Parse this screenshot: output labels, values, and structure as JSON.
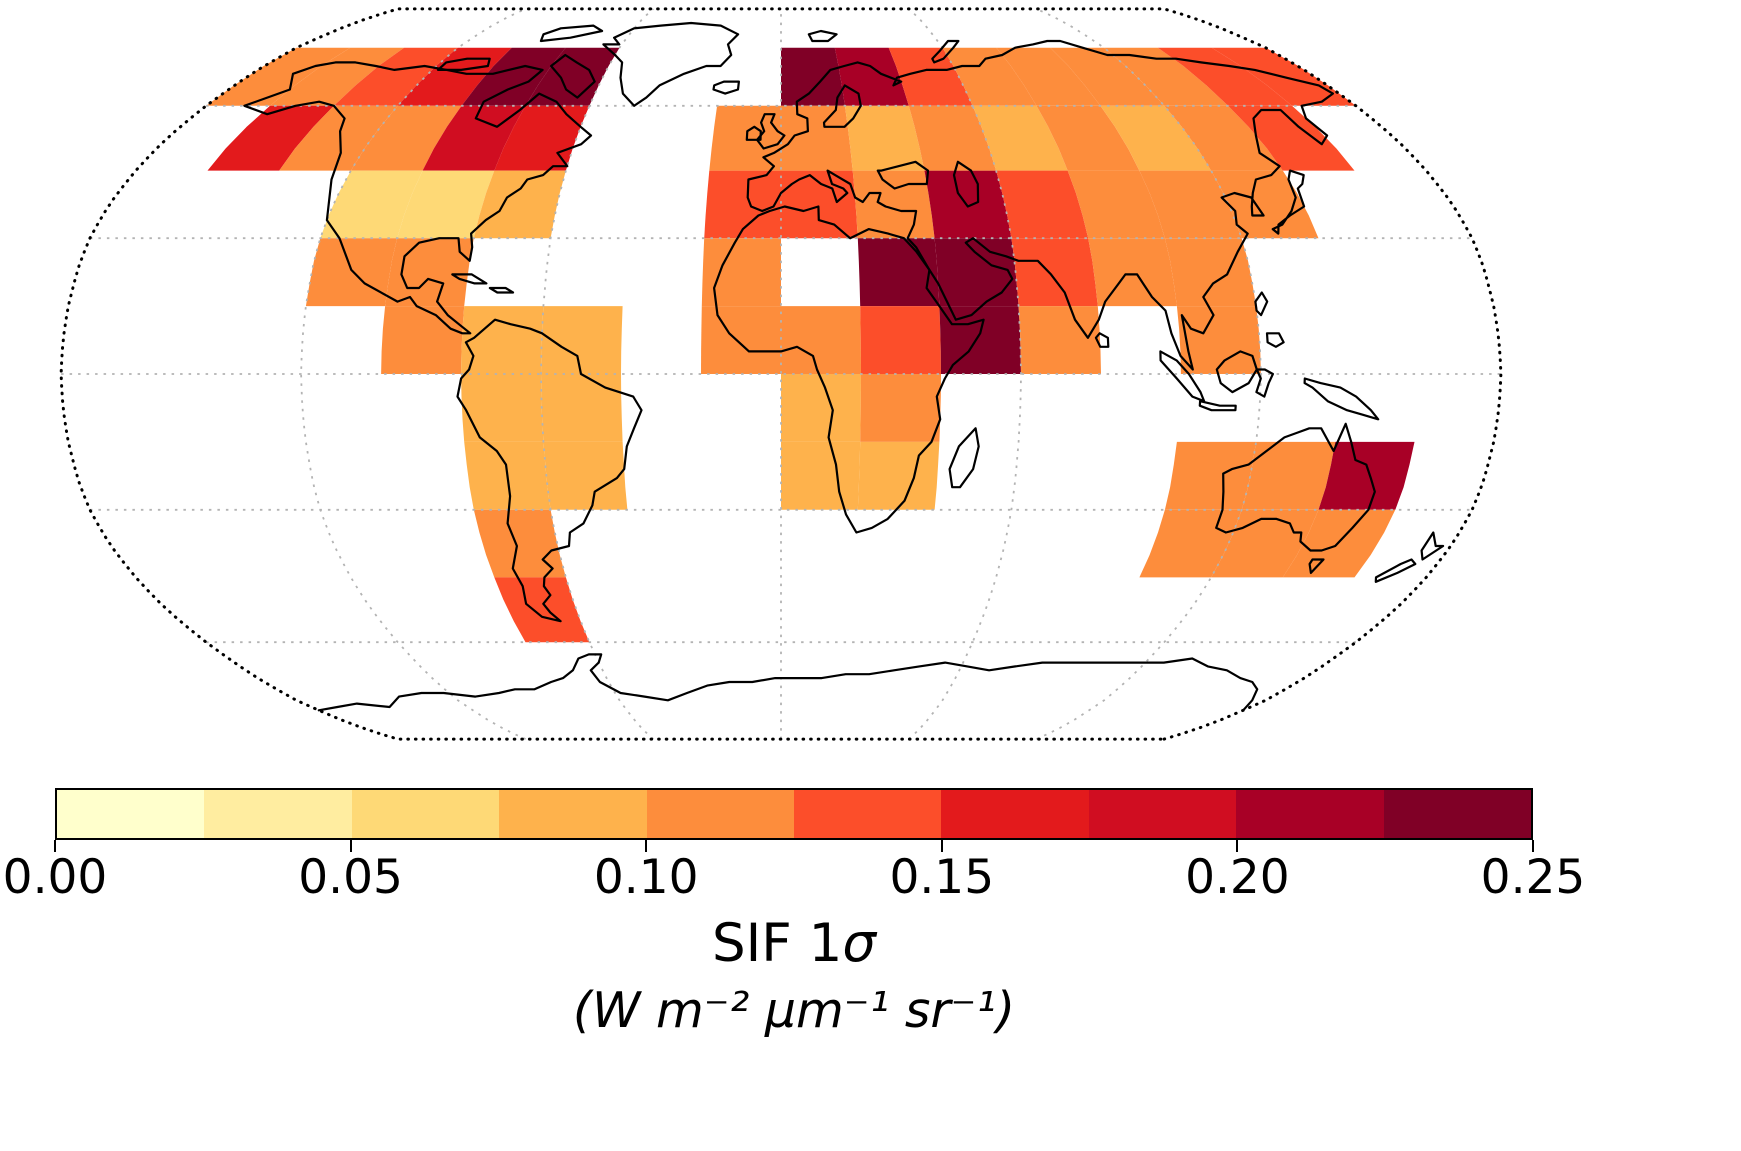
{
  "figure": {
    "background": "#ffffff",
    "map": {
      "projection": "Robinson",
      "outline_style": "dotted",
      "coastline_color": "#000000",
      "graticule_color": "#b3b3b3",
      "graticule": {
        "parallels": [
          -60,
          -30,
          0,
          30,
          60
        ],
        "meridians": [
          -120,
          -60,
          0,
          60,
          120
        ]
      }
    },
    "colorbar": {
      "orientation": "horizontal",
      "min": 0.0,
      "max": 0.25,
      "ticks": [
        "0.00",
        "0.05",
        "0.10",
        "0.15",
        "0.20",
        "0.25"
      ],
      "label_prefix": "SIF 1",
      "label_sigma": "σ",
      "units": "(W m⁻² μm⁻¹ sr⁻¹)"
    }
  },
  "chart_data": {
    "type": "heatmap",
    "title": "",
    "variable": "SIF 1σ",
    "units": "W m⁻² μm⁻¹ sr⁻¹",
    "projection": "Robinson",
    "legend_position": "bottom",
    "grid": "dashed graticule",
    "value_range": [
      0.0,
      0.25
    ],
    "cell_size_deg": {
      "lon": 20,
      "lat": 15
    },
    "colormap": {
      "name": "YlOrRd",
      "n_levels": 10,
      "levels": [
        0.0,
        0.025,
        0.05,
        0.075,
        0.1,
        0.125,
        0.15,
        0.175,
        0.2,
        0.225,
        0.25
      ],
      "colors": [
        "#ffffcc",
        "#ffeda0",
        "#fed976",
        "#feb24c",
        "#fd8d3c",
        "#fc4e2a",
        "#e31a1c",
        "#d00d21",
        "#a80026",
        "#800026"
      ]
    },
    "cells": [
      [
        -170,
        67.5,
        0.1
      ],
      [
        -150,
        67.5,
        0.11
      ],
      [
        -130,
        67.5,
        0.14
      ],
      [
        -110,
        67.5,
        0.17
      ],
      [
        -90,
        67.5,
        0.24
      ],
      [
        -70,
        67.5,
        0.23
      ],
      [
        -150,
        52.5,
        0.16
      ],
      [
        -130,
        52.5,
        0.11
      ],
      [
        -110,
        52.5,
        0.12
      ],
      [
        -90,
        52.5,
        0.19
      ],
      [
        -70,
        52.5,
        0.16
      ],
      [
        -110,
        37.5,
        0.07
      ],
      [
        -90,
        37.5,
        0.07
      ],
      [
        -70,
        37.5,
        0.08
      ],
      [
        -110,
        22.5,
        0.1
      ],
      [
        -90,
        22.5,
        0.11
      ],
      [
        -90,
        7.5,
        0.1
      ],
      [
        -70,
        7.5,
        0.09
      ],
      [
        -50,
        7.5,
        0.08
      ],
      [
        -70,
        -7.5,
        0.08
      ],
      [
        -50,
        -7.5,
        0.08
      ],
      [
        -70,
        -22.5,
        0.09
      ],
      [
        -50,
        -22.5,
        0.08
      ],
      [
        -70,
        -37.5,
        0.1
      ],
      [
        -70,
        -52.5,
        0.15
      ],
      [
        -10,
        37.5,
        0.13
      ],
      [
        10,
        37.5,
        0.13
      ],
      [
        30,
        37.5,
        0.11
      ],
      [
        50,
        37.5,
        0.2
      ],
      [
        -10,
        22.5,
        0.12
      ],
      [
        30,
        22.5,
        0.24
      ],
      [
        50,
        22.5,
        0.24
      ],
      [
        -10,
        7.5,
        0.1
      ],
      [
        10,
        7.5,
        0.11
      ],
      [
        30,
        7.5,
        0.13
      ],
      [
        50,
        7.5,
        0.24
      ],
      [
        10,
        -7.5,
        0.09
      ],
      [
        30,
        -7.5,
        0.1
      ],
      [
        10,
        -22.5,
        0.09
      ],
      [
        30,
        -22.5,
        0.09
      ],
      [
        10,
        67.5,
        0.24
      ],
      [
        30,
        67.5,
        0.21
      ],
      [
        50,
        67.5,
        0.13
      ],
      [
        70,
        67.5,
        0.12
      ],
      [
        90,
        67.5,
        0.11
      ],
      [
        110,
        67.5,
        0.12
      ],
      [
        130,
        67.5,
        0.12
      ],
      [
        150,
        67.5,
        0.13
      ],
      [
        170,
        67.5,
        0.15
      ],
      [
        -10,
        52.5,
        0.1
      ],
      [
        10,
        52.5,
        0.11
      ],
      [
        30,
        52.5,
        0.09
      ],
      [
        50,
        52.5,
        0.1
      ],
      [
        70,
        52.5,
        0.09
      ],
      [
        90,
        52.5,
        0.1
      ],
      [
        110,
        52.5,
        0.09
      ],
      [
        130,
        52.5,
        0.12
      ],
      [
        150,
        52.5,
        0.13
      ],
      [
        70,
        37.5,
        0.13
      ],
      [
        90,
        37.5,
        0.11
      ],
      [
        110,
        37.5,
        0.1
      ],
      [
        130,
        37.5,
        0.11
      ],
      [
        70,
        22.5,
        0.13
      ],
      [
        90,
        22.5,
        0.12
      ],
      [
        110,
        22.5,
        0.11
      ],
      [
        70,
        7.5,
        0.12
      ],
      [
        110,
        7.5,
        0.11
      ],
      [
        110,
        -22.5,
        0.1
      ],
      [
        130,
        -22.5,
        0.12
      ],
      [
        150,
        -22.5,
        0.2
      ],
      [
        110,
        -37.5,
        0.1
      ],
      [
        130,
        -37.5,
        0.11
      ],
      [
        150,
        -37.5,
        0.12
      ]
    ]
  }
}
